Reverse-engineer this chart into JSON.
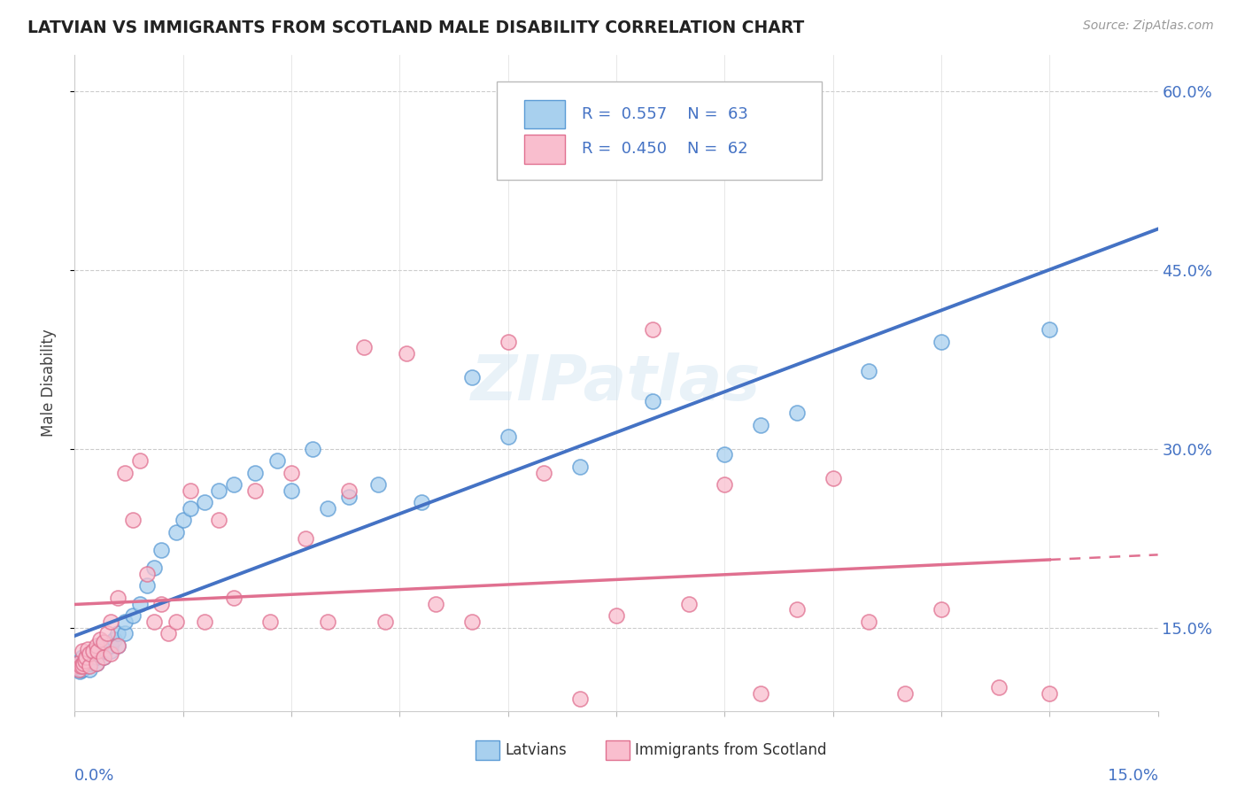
{
  "title": "LATVIAN VS IMMIGRANTS FROM SCOTLAND MALE DISABILITY CORRELATION CHART",
  "source": "Source: ZipAtlas.com",
  "ylabel": "Male Disability",
  "x_min": 0.0,
  "x_max": 0.15,
  "y_min": 0.08,
  "y_max": 0.63,
  "ytick_vals": [
    0.15,
    0.3,
    0.45,
    0.6
  ],
  "ytick_labels": [
    "15.0%",
    "30.0%",
    "45.0%",
    "60.0%"
  ],
  "color_latvian_fill": "#A8D0EE",
  "color_latvian_edge": "#5B9BD5",
  "color_scotland_fill": "#F9BECE",
  "color_scotland_edge": "#E07090",
  "color_latvian_line": "#4472C4",
  "color_scotland_line": "#E07090",
  "background_color": "#FFFFFF",
  "watermark": "ZIPatlas",
  "latvian_x": [
    0.0002,
    0.0003,
    0.0005,
    0.0007,
    0.0008,
    0.001,
    0.001,
    0.0012,
    0.0013,
    0.0015,
    0.0015,
    0.0017,
    0.0018,
    0.002,
    0.002,
    0.0022,
    0.0025,
    0.0025,
    0.003,
    0.003,
    0.003,
    0.0032,
    0.0035,
    0.004,
    0.004,
    0.0042,
    0.0045,
    0.005,
    0.005,
    0.0055,
    0.006,
    0.006,
    0.007,
    0.007,
    0.008,
    0.009,
    0.01,
    0.011,
    0.012,
    0.014,
    0.015,
    0.016,
    0.018,
    0.02,
    0.022,
    0.025,
    0.028,
    0.03,
    0.033,
    0.035,
    0.038,
    0.042,
    0.048,
    0.055,
    0.06,
    0.07,
    0.08,
    0.09,
    0.095,
    0.1,
    0.11,
    0.12,
    0.135
  ],
  "latvian_y": [
    0.12,
    0.118,
    0.115,
    0.113,
    0.115,
    0.115,
    0.125,
    0.12,
    0.122,
    0.118,
    0.125,
    0.118,
    0.12,
    0.115,
    0.122,
    0.12,
    0.125,
    0.13,
    0.12,
    0.125,
    0.13,
    0.128,
    0.135,
    0.125,
    0.13,
    0.132,
    0.135,
    0.13,
    0.135,
    0.14,
    0.135,
    0.145,
    0.145,
    0.155,
    0.16,
    0.17,
    0.185,
    0.2,
    0.215,
    0.23,
    0.24,
    0.25,
    0.255,
    0.265,
    0.27,
    0.28,
    0.29,
    0.265,
    0.3,
    0.25,
    0.26,
    0.27,
    0.255,
    0.36,
    0.31,
    0.285,
    0.34,
    0.295,
    0.32,
    0.33,
    0.365,
    0.39,
    0.4
  ],
  "scotland_x": [
    0.0002,
    0.0004,
    0.0006,
    0.0008,
    0.001,
    0.001,
    0.0012,
    0.0014,
    0.0016,
    0.0018,
    0.002,
    0.002,
    0.0025,
    0.003,
    0.003,
    0.0032,
    0.0035,
    0.004,
    0.004,
    0.0045,
    0.005,
    0.005,
    0.006,
    0.006,
    0.007,
    0.008,
    0.009,
    0.01,
    0.011,
    0.012,
    0.013,
    0.014,
    0.016,
    0.018,
    0.02,
    0.022,
    0.025,
    0.027,
    0.03,
    0.032,
    0.035,
    0.038,
    0.04,
    0.043,
    0.046,
    0.05,
    0.055,
    0.06,
    0.065,
    0.07,
    0.075,
    0.08,
    0.085,
    0.09,
    0.095,
    0.1,
    0.105,
    0.11,
    0.115,
    0.12,
    0.128,
    0.135
  ],
  "scotland_y": [
    0.118,
    0.12,
    0.115,
    0.118,
    0.118,
    0.13,
    0.12,
    0.122,
    0.125,
    0.132,
    0.118,
    0.128,
    0.13,
    0.12,
    0.135,
    0.13,
    0.14,
    0.125,
    0.138,
    0.145,
    0.128,
    0.155,
    0.135,
    0.175,
    0.28,
    0.24,
    0.29,
    0.195,
    0.155,
    0.17,
    0.145,
    0.155,
    0.265,
    0.155,
    0.24,
    0.175,
    0.265,
    0.155,
    0.28,
    0.225,
    0.155,
    0.265,
    0.385,
    0.155,
    0.38,
    0.17,
    0.155,
    0.39,
    0.28,
    0.09,
    0.16,
    0.4,
    0.17,
    0.27,
    0.095,
    0.165,
    0.275,
    0.155,
    0.095,
    0.165,
    0.1,
    0.095
  ]
}
